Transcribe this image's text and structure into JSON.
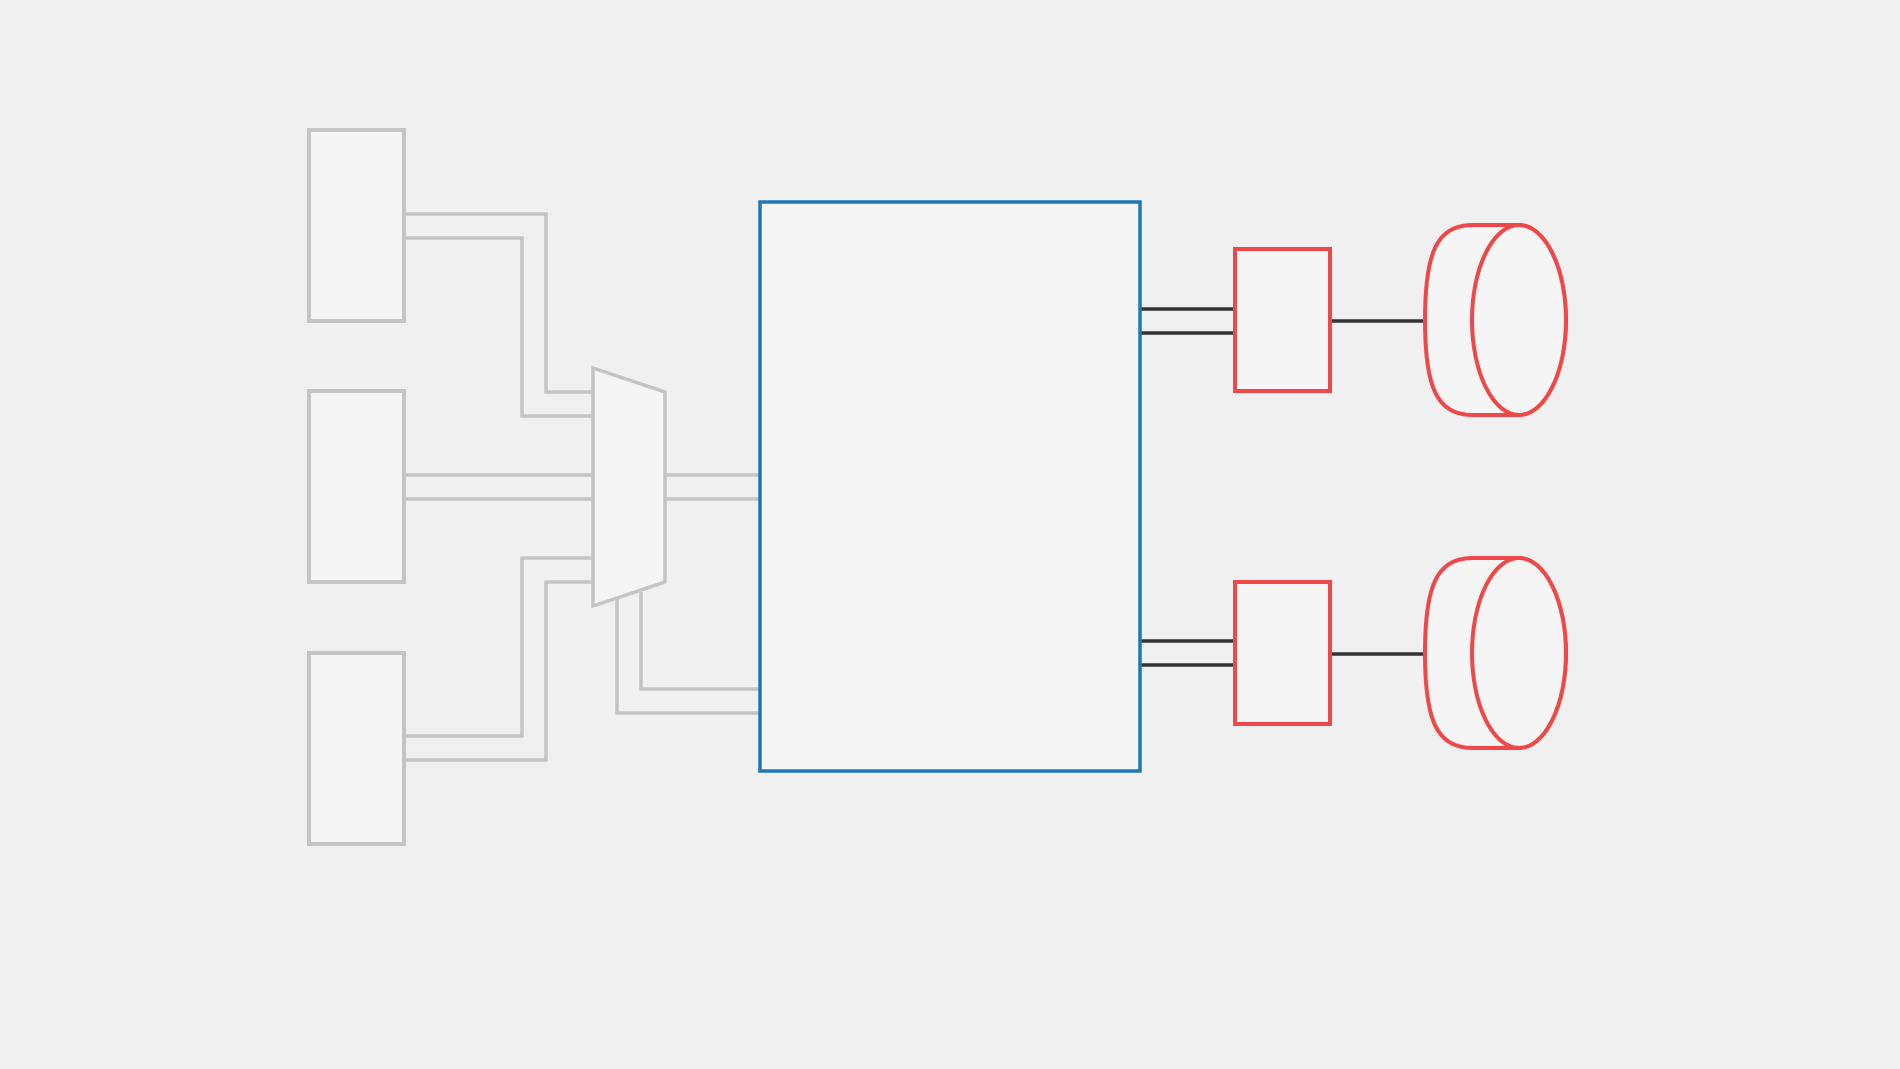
{
  "diagram": {
    "colors": {
      "background": "#f0f0f0",
      "node_fill": "#f5f5f5",
      "inactive_stroke": "#c4c4c4",
      "active_stroke": "#1f77b4",
      "highlight_stroke": "#f04848",
      "link_stroke": "#333333"
    },
    "nodes": [
      {
        "id": "input-1",
        "shape": "rectangle",
        "state": "inactive",
        "label": ""
      },
      {
        "id": "input-2",
        "shape": "rectangle",
        "state": "inactive",
        "label": ""
      },
      {
        "id": "input-3",
        "shape": "rectangle",
        "state": "inactive",
        "label": ""
      },
      {
        "id": "multiplexer",
        "shape": "trapezoid",
        "state": "inactive",
        "label": ""
      },
      {
        "id": "processor",
        "shape": "rectangle",
        "state": "active",
        "label": ""
      },
      {
        "id": "output-1",
        "shape": "rectangle",
        "state": "highlight",
        "label": ""
      },
      {
        "id": "output-2",
        "shape": "rectangle",
        "state": "highlight",
        "label": ""
      },
      {
        "id": "storage-1",
        "shape": "cylinder",
        "state": "highlight",
        "label": ""
      },
      {
        "id": "storage-2",
        "shape": "cylinder",
        "state": "highlight",
        "label": ""
      }
    ],
    "edges": [
      {
        "from": "input-1",
        "to": "multiplexer",
        "style": "double",
        "state": "inactive"
      },
      {
        "from": "input-2",
        "to": "multiplexer",
        "style": "double",
        "state": "inactive"
      },
      {
        "from": "input-3",
        "to": "multiplexer",
        "style": "double",
        "state": "inactive"
      },
      {
        "from": "multiplexer",
        "to": "processor",
        "style": "double",
        "state": "inactive"
      },
      {
        "from": "multiplexer",
        "to": "processor",
        "style": "double",
        "state": "inactive"
      },
      {
        "from": "processor",
        "to": "output-1",
        "style": "double",
        "state": "active"
      },
      {
        "from": "processor",
        "to": "output-2",
        "style": "double",
        "state": "active"
      },
      {
        "from": "output-1",
        "to": "storage-1",
        "style": "single",
        "state": "active"
      },
      {
        "from": "output-2",
        "to": "storage-2",
        "style": "single",
        "state": "active"
      }
    ]
  }
}
